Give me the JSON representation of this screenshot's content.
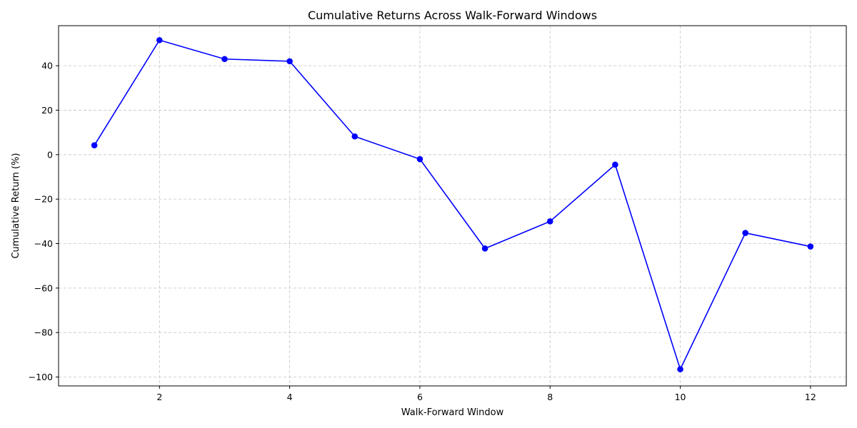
{
  "chart_data": {
    "type": "line",
    "title": "Cumulative Returns Across Walk-Forward Windows",
    "xlabel": "Walk-Forward Window",
    "ylabel": "Cumulative Return (%)",
    "xlim": [
      0.45,
      12.55
    ],
    "ylim": [
      -104,
      58
    ],
    "xticks": [
      2,
      4,
      6,
      8,
      10,
      12
    ],
    "xtick_labels": [
      "2",
      "4",
      "6",
      "8",
      "10",
      "12"
    ],
    "yticks": [
      -100,
      -80,
      -60,
      -40,
      -20,
      0,
      20,
      40
    ],
    "ytick_labels": [
      "−100",
      "−80",
      "−60",
      "−40",
      "−20",
      "0",
      "20",
      "40"
    ],
    "grid": true,
    "series": [
      {
        "color": "#0000ff",
        "marker": "circle",
        "x": [
          1,
          2,
          3,
          4,
          5,
          6,
          7,
          8,
          9,
          10,
          11,
          12
        ],
        "y": [
          4.2,
          51.5,
          43.0,
          42.0,
          8.2,
          -2.0,
          -42.2,
          -30.0,
          -4.5,
          -96.5,
          -35.2,
          -41.3
        ]
      }
    ]
  }
}
